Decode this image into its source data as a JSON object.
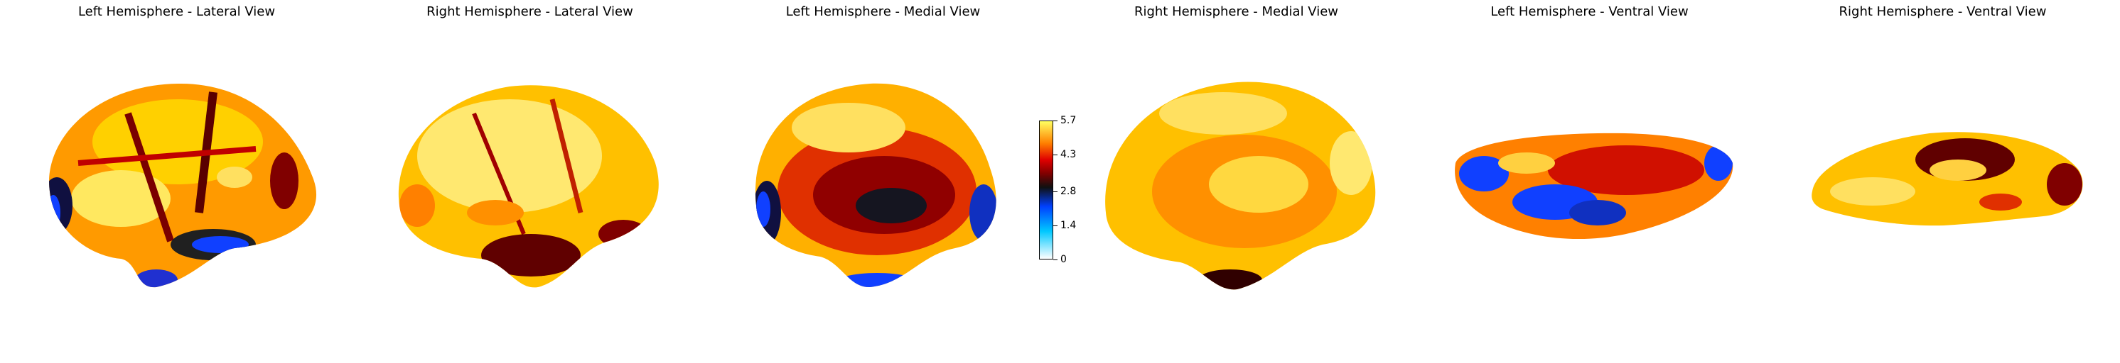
{
  "panels": [
    {
      "title": "Left Hemisphere - Lateral View",
      "view": "lateral",
      "hemisphere": "left"
    },
    {
      "title": "Right Hemisphere - Lateral View",
      "view": "lateral",
      "hemisphere": "right"
    },
    {
      "title": "Left Hemisphere - Medial View",
      "view": "medial",
      "hemisphere": "left"
    },
    {
      "title": "Right Hemisphere - Medial View",
      "view": "medial",
      "hemisphere": "right"
    },
    {
      "title": "Left Hemisphere - Ventral View",
      "view": "ventral",
      "hemisphere": "left"
    },
    {
      "title": "Right Hemisphere - Ventral View",
      "view": "ventral",
      "hemisphere": "right"
    }
  ],
  "colorbar": {
    "ticks": [
      "0",
      "1.4",
      "2.8",
      "4.3",
      "5.7"
    ],
    "min": 0,
    "max": 5.7,
    "colors": [
      "#ffffff",
      "#00c8ff",
      "#0040ff",
      "#101010",
      "#800000",
      "#e00000",
      "#ff8000",
      "#ffff60"
    ]
  }
}
